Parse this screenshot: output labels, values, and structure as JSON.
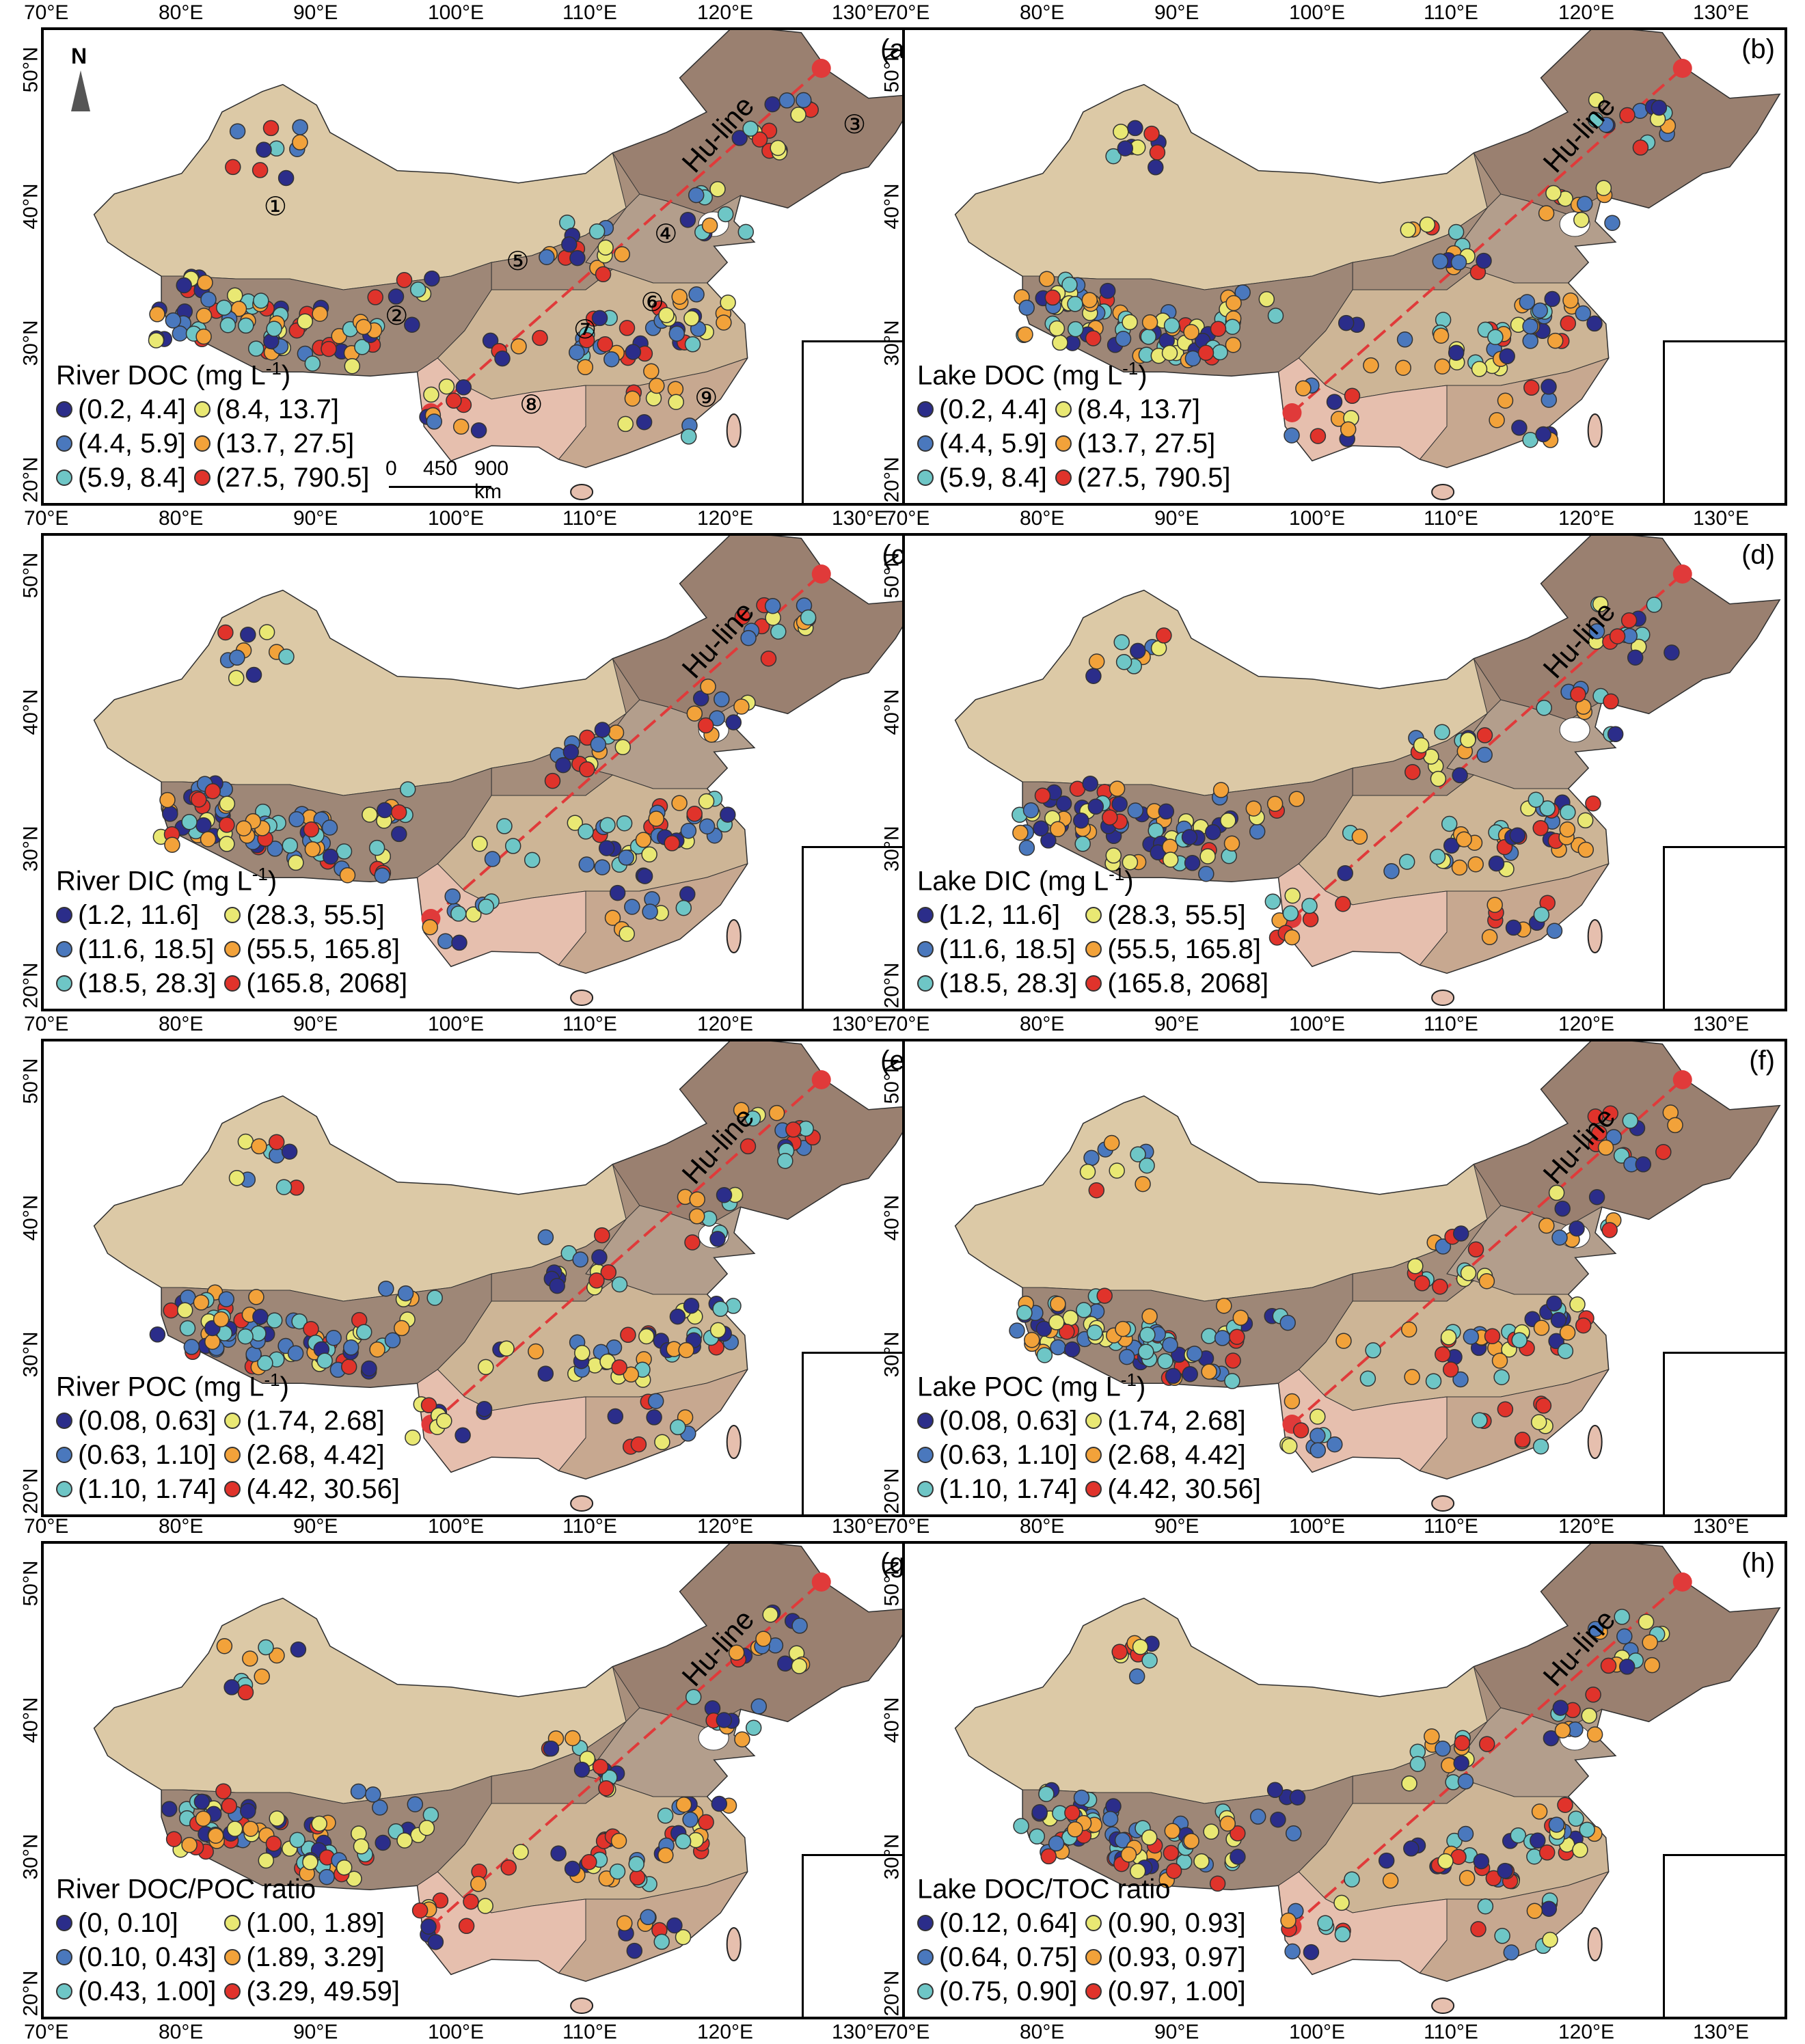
{
  "lon_ticks": [
    "70°E",
    "80°E",
    "90°E",
    "100°E",
    "110°E",
    "120°E",
    "130°E"
  ],
  "lat_ticks": [
    "50°N",
    "40°N",
    "30°N",
    "20°N"
  ],
  "hu_line_label": "Hu-line",
  "scale": {
    "t0": "0",
    "t1": "450",
    "t2": "900 km"
  },
  "region_numbers": [
    "①",
    "②",
    "③",
    "④",
    "⑤",
    "⑥",
    "⑦",
    "⑧",
    "⑨"
  ],
  "north_symbol": "N",
  "colors": {
    "class1": "#2b2d8a",
    "class2": "#4a78bd",
    "class3": "#6ec6c6",
    "class4": "#e9e873",
    "class5": "#f2a23a",
    "class6": "#e0332b",
    "region_light": "#dcc9a6",
    "region_mid": "#a88f7c",
    "region_dark": "#9a8070",
    "region_pink": "#e6bfae",
    "hu_line": "#e03a3a"
  },
  "panels": [
    {
      "label": "(a)",
      "title": "River DOC (mg L",
      "unit_sup": "-1",
      "title_end": ")",
      "classes": [
        "(0.2, 4.4]",
        "(8.4, 13.7]",
        "(4.4, 5.9]",
        "(13.7, 27.5]",
        "(5.9, 8.4]",
        "(27.5, 790.5]"
      ]
    },
    {
      "label": "(b)",
      "title": "Lake DOC (mg L",
      "unit_sup": "-1",
      "title_end": ")",
      "classes": [
        "(0.2, 4.4]",
        "(8.4, 13.7]",
        "(4.4, 5.9]",
        "(13.7, 27.5]",
        "(5.9, 8.4]",
        "(27.5, 790.5]"
      ]
    },
    {
      "label": "(c)",
      "title": "River DIC (mg L",
      "unit_sup": "-1",
      "title_end": ")",
      "classes": [
        "(1.2, 11.6]",
        "(28.3, 55.5]",
        "(11.6, 18.5]",
        "(55.5, 165.8]",
        "(18.5, 28.3]",
        "(165.8, 2068]"
      ]
    },
    {
      "label": "(d)",
      "title": "Lake DIC (mg L",
      "unit_sup": "-1",
      "title_end": ")",
      "classes": [
        "(1.2, 11.6]",
        "(28.3, 55.5]",
        "(11.6, 18.5]",
        "(55.5, 165.8]",
        "(18.5, 28.3]",
        "(165.8, 2068]"
      ]
    },
    {
      "label": "(e)",
      "title": "River POC (mg L",
      "unit_sup": "-1",
      "title_end": ")",
      "classes": [
        "(0.08, 0.63]",
        "(1.74, 2.68]",
        "(0.63, 1.10]",
        "(2.68, 4.42]",
        "(1.10, 1.74]",
        "(4.42, 30.56]"
      ]
    },
    {
      "label": "(f)",
      "title": "Lake POC (mg L",
      "unit_sup": "-1",
      "title_end": ")",
      "classes": [
        "(0.08, 0.63]",
        "(1.74, 2.68]",
        "(0.63, 1.10]",
        "(2.68, 4.42]",
        "(1.10, 1.74]",
        "(4.42, 30.56]"
      ]
    },
    {
      "label": "(g)",
      "title": "River DOC/POC ratio",
      "unit_sup": "",
      "title_end": "",
      "classes": [
        "(0, 0.10]",
        "(1.00, 1.89]",
        "(0.10, 0.43]",
        "(1.89, 3.29]",
        "(0.43, 1.00]",
        "(3.29, 49.59]"
      ]
    },
    {
      "label": "(h)",
      "title": "Lake DOC/TOC ratio",
      "unit_sup": "",
      "title_end": "",
      "classes": [
        "(0.12, 0.64]",
        "(0.90, 0.93]",
        "(0.64, 0.75]",
        "(0.93, 0.97]",
        "(0.75, 0.90]",
        "(0.97, 1.00]"
      ]
    }
  ]
}
